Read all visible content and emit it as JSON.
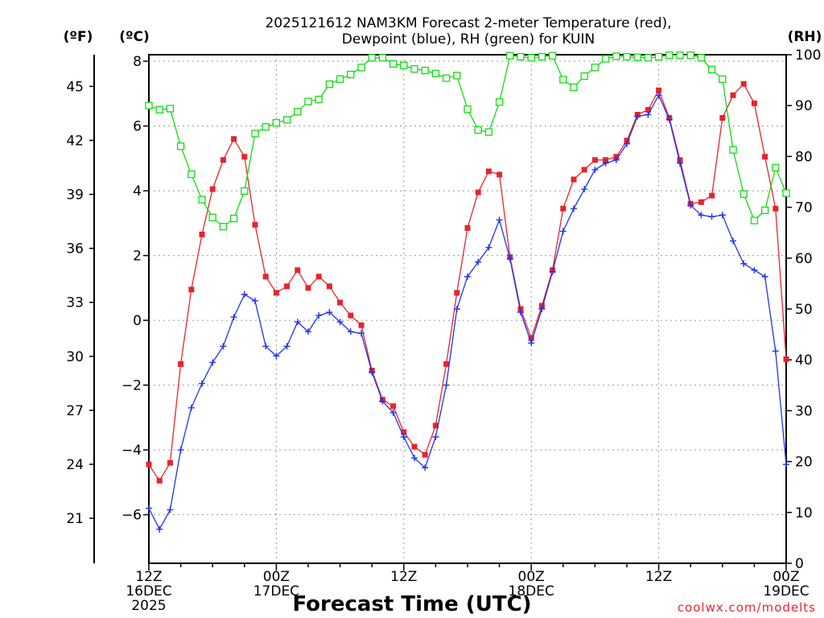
{
  "chart_data": {
    "type": "line",
    "title": [
      "2025121612 NAM3KM Forecast 2-meter Temperature (red),",
      "Dewpoint (blue), RH (green) for KUIN"
    ],
    "xlabel": "Forecast Time (UTC)",
    "credit": "coolwx.com/modelts",
    "units": {
      "fahrenheit": "(ºF)",
      "celsius": "(ºC)",
      "rh": "(RH)"
    },
    "x_range": [
      0,
      60
    ],
    "y_left_celsius": {
      "range": [
        -7.5,
        8.2
      ],
      "ticks": [
        -6,
        -4,
        -2,
        0,
        2,
        4,
        6,
        8
      ],
      "labels": [
        "−6",
        "−4",
        "−2",
        "0",
        "2",
        "4",
        "6",
        "8"
      ]
    },
    "y_left_fahrenheit": {
      "ticks": [
        21,
        24,
        27,
        30,
        33,
        36,
        39,
        42,
        45
      ]
    },
    "y_right_rh": {
      "range": [
        0,
        100
      ],
      "ticks": [
        0,
        10,
        20,
        30,
        40,
        50,
        60,
        70,
        80,
        90,
        100
      ]
    },
    "x_ticks": [
      {
        "x": 0,
        "lines": [
          "12Z",
          "16DEC",
          "2025"
        ]
      },
      {
        "x": 12,
        "lines": [
          "00Z",
          "17DEC"
        ]
      },
      {
        "x": 24,
        "lines": [
          "12Z"
        ]
      },
      {
        "x": 36,
        "lines": [
          "00Z",
          "18DEC"
        ]
      },
      {
        "x": 48,
        "lines": [
          "12Z"
        ]
      },
      {
        "x": 60,
        "lines": [
          "00Z",
          "19DEC"
        ]
      }
    ],
    "x_grid": [
      12,
      24,
      36,
      48
    ],
    "series": [
      {
        "name": "Temperature",
        "color": "#e8242d",
        "marker": "filled-square",
        "x": [
          0,
          1,
          2,
          3,
          4,
          5,
          6,
          7,
          8,
          9,
          10,
          11,
          12,
          13,
          14,
          15,
          16,
          17,
          18,
          19,
          20,
          21,
          22,
          23,
          24,
          25,
          26,
          27,
          28,
          29,
          30,
          31,
          32,
          33,
          34,
          35,
          36,
          37,
          38,
          39,
          40,
          41,
          42,
          43,
          44,
          45,
          46,
          47,
          48,
          49,
          50,
          51,
          52,
          53,
          54,
          55,
          56,
          57,
          58,
          59,
          60
        ],
        "values": [
          -4.45,
          -4.95,
          -4.4,
          -1.35,
          0.95,
          2.65,
          4.05,
          4.95,
          5.6,
          5.05,
          2.95,
          1.35,
          0.85,
          1.05,
          1.55,
          1.0,
          1.35,
          1.05,
          0.55,
          0.15,
          -0.15,
          -1.55,
          -2.45,
          -2.65,
          -3.45,
          -3.9,
          -4.15,
          -3.25,
          -1.35,
          0.85,
          2.85,
          3.95,
          4.6,
          4.5,
          1.95,
          0.35,
          -0.55,
          0.45,
          1.55,
          3.45,
          4.35,
          4.65,
          4.95,
          4.95,
          5.05,
          5.55,
          6.35,
          6.5,
          7.1,
          6.25,
          4.95,
          3.6,
          3.65,
          3.85,
          6.25,
          6.95,
          7.3,
          6.7,
          5.05,
          3.45,
          -1.2
        ]
      },
      {
        "name": "Dewpoint",
        "color": "#2233ee",
        "marker": "plus",
        "x": [
          0,
          1,
          2,
          3,
          4,
          5,
          6,
          7,
          8,
          9,
          10,
          11,
          12,
          13,
          14,
          15,
          16,
          17,
          18,
          19,
          20,
          21,
          22,
          23,
          24,
          25,
          26,
          27,
          28,
          29,
          30,
          31,
          32,
          33,
          34,
          35,
          36,
          37,
          38,
          39,
          40,
          41,
          42,
          43,
          44,
          45,
          46,
          47,
          48,
          49,
          50,
          51,
          52,
          53,
          54,
          55,
          56,
          57,
          58,
          59,
          60
        ],
        "values": [
          -5.8,
          -6.45,
          -5.85,
          -4.0,
          -2.7,
          -1.95,
          -1.3,
          -0.8,
          0.1,
          0.8,
          0.6,
          -0.8,
          -1.1,
          -0.8,
          -0.05,
          -0.35,
          0.15,
          0.25,
          -0.05,
          -0.35,
          -0.4,
          -1.6,
          -2.5,
          -2.85,
          -3.6,
          -4.25,
          -4.55,
          -3.6,
          -2.0,
          0.35,
          1.35,
          1.8,
          2.25,
          3.1,
          1.9,
          0.25,
          -0.7,
          0.35,
          1.5,
          2.75,
          3.45,
          4.05,
          4.65,
          4.85,
          4.95,
          5.45,
          6.3,
          6.35,
          6.95,
          6.2,
          4.85,
          3.55,
          3.25,
          3.2,
          3.25,
          2.45,
          1.75,
          1.55,
          1.35,
          -0.95,
          -4.45
        ]
      },
      {
        "name": "RH",
        "color": "#11dd11",
        "marker": "open-square",
        "axis": "right",
        "x": [
          0,
          1,
          2,
          3,
          4,
          5,
          6,
          7,
          8,
          9,
          10,
          11,
          12,
          13,
          14,
          15,
          16,
          17,
          18,
          19,
          20,
          21,
          22,
          23,
          24,
          25,
          26,
          27,
          28,
          29,
          30,
          31,
          32,
          33,
          34,
          35,
          36,
          37,
          38,
          39,
          40,
          41,
          42,
          43,
          44,
          45,
          46,
          47,
          48,
          49,
          50,
          51,
          52,
          53,
          54,
          55,
          56,
          57,
          58,
          59,
          60
        ],
        "values": [
          90,
          89.2,
          89.4,
          82,
          76.5,
          71.5,
          68,
          66.2,
          67.8,
          73.2,
          84.5,
          85.8,
          86.6,
          87.2,
          88.8,
          90.8,
          91.2,
          94.2,
          95.2,
          96.1,
          97.5,
          99.4,
          99.4,
          98.2,
          97.9,
          97.2,
          96.9,
          96.3,
          95.4,
          95.9,
          89.3,
          85.2,
          84.8,
          90.7,
          99.8,
          99.6,
          99.4,
          99.6,
          99.8,
          95.1,
          93.6,
          95.8,
          97.5,
          99.2,
          99.7,
          99.6,
          99.5,
          99.4,
          99.6,
          99.9,
          99.9,
          99.9,
          99.4,
          97.1,
          95.2,
          81.3,
          72.6,
          67.4,
          69.4,
          77.8,
          72.8
        ]
      }
    ]
  }
}
